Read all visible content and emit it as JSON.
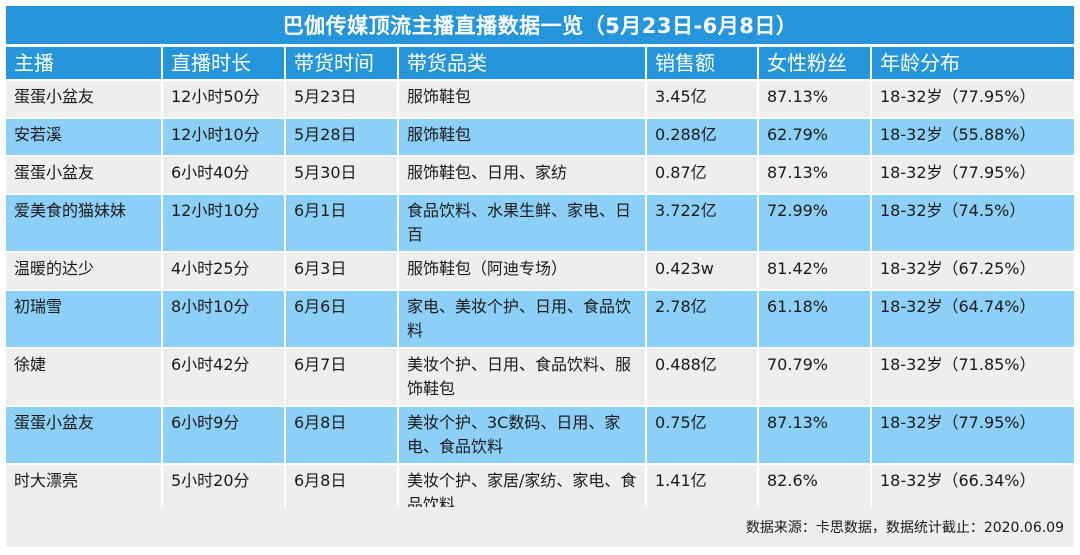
{
  "title": "巴伽传媒顶流主播直播数据一览（5月23日-6月8日）",
  "headers": [
    "主播",
    "直播时长",
    "带货时间",
    "带货品类",
    "销售额",
    "女性粉丝",
    "年龄分布"
  ],
  "rows": [
    {
      "anchor": "蛋蛋小盆友",
      "duration": "12小时50分",
      "date": "5月23日",
      "category": "服饰鞋包",
      "sales": "3.45亿",
      "female_fans": "87.13%",
      "age": "18-32岁（77.95%）"
    },
    {
      "anchor": "安若溪",
      "duration": "12小时10分",
      "date": "5月28日",
      "category": "服饰鞋包",
      "sales": "0.288亿",
      "female_fans": "62.79%",
      "age": "18-32岁（55.88%）"
    },
    {
      "anchor": "蛋蛋小盆友",
      "duration": "6小时40分",
      "date": "5月30日",
      "category": "服饰鞋包、日用、家纺",
      "sales": "0.87亿",
      "female_fans": "87.13%",
      "age": "18-32岁（77.95%）"
    },
    {
      "anchor": "爱美食的猫妹妹",
      "duration": "12小时10分",
      "date": "6月1日",
      "category": "食品饮料、水果生鲜、家电、日百",
      "sales": "3.722亿",
      "female_fans": "72.99%",
      "age": "18-32岁（74.5%）"
    },
    {
      "anchor": "温暖的达少",
      "duration": "4小时25分",
      "date": "6月3日",
      "category": "服饰鞋包（阿迪专场）",
      "sales": "0.423w",
      "female_fans": "81.42%",
      "age": "18-32岁（67.25%）"
    },
    {
      "anchor": "初瑞雪",
      "duration": "8小时10分",
      "date": "6月6日",
      "category": "家电、美妆个护、日用、食品饮料",
      "sales": "2.78亿",
      "female_fans": "61.18%",
      "age": "18-32岁（64.74%）"
    },
    {
      "anchor": "徐婕",
      "duration": "6小时42分",
      "date": "6月7日",
      "category": "美妆个护、日用、食品饮料、服饰鞋包",
      "sales": "0.488亿",
      "female_fans": "70.79%",
      "age": "18-32岁（71.85%）"
    },
    {
      "anchor": "蛋蛋小盆友",
      "duration": "6小时9分",
      "date": "6月8日",
      "category": "美妆个护、3C数码、日用、家电、食品饮料",
      "sales": "0.75亿",
      "female_fans": "87.13%",
      "age": "18-32岁（77.95%）"
    },
    {
      "anchor": "时大漂亮",
      "duration": "5小时20分",
      "date": "6月8日",
      "category": "美妆个护、家居/家纺、家电、食品饮料",
      "sales": "1.41亿",
      "female_fans": "82.6%",
      "age": "18-32岁（66.34%）"
    }
  ],
  "footer": "数据来源：卡思数据，数据统计截止：2020.06.09"
}
